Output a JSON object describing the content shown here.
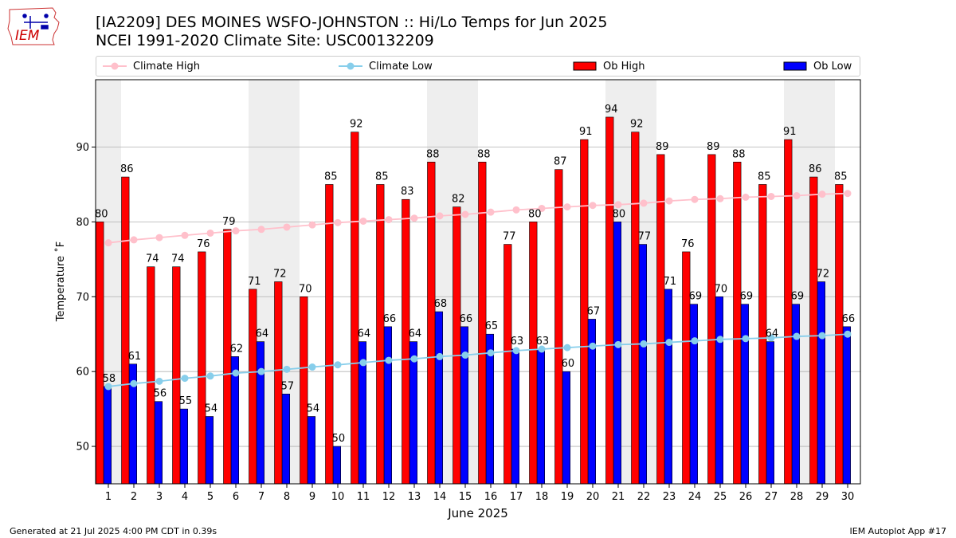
{
  "title_line1": "[IA2209] DES MOINES WSFO-JOHNSTON :: Hi/Lo Temps for Jun 2025",
  "title_line2": "NCEI 1991-2020 Climate Site: USC00132209",
  "logo_text": "IEM",
  "footer_left": "Generated at 21 Jul 2025 4:00 PM CDT in 0.39s",
  "footer_right": "IEM Autoplot App #17",
  "legend": {
    "climate_high": "Climate High",
    "climate_low": "Climate Low",
    "ob_high": "Ob High",
    "ob_low": "Ob Low"
  },
  "colors": {
    "ob_high": "#ff0000",
    "ob_low": "#0000ff",
    "climate_high": "#ffc0cb",
    "climate_low": "#87ceeb",
    "weekend_band": "#eeeeee",
    "grid": "#b0b0b0"
  },
  "chart_data": {
    "type": "bar",
    "xlabel": "June 2025",
    "ylabel": "Temperature ˚F",
    "ylim": [
      45,
      99
    ],
    "yticks": [
      50,
      60,
      70,
      80,
      90
    ],
    "grid": "horizontal",
    "legend_position": "top",
    "categories": [
      "1",
      "2",
      "3",
      "4",
      "5",
      "6",
      "7",
      "8",
      "9",
      "10",
      "11",
      "12",
      "13",
      "14",
      "15",
      "16",
      "17",
      "18",
      "19",
      "20",
      "21",
      "22",
      "23",
      "24",
      "25",
      "26",
      "27",
      "28",
      "29",
      "30"
    ],
    "weekend_days": [
      1,
      7,
      8,
      14,
      15,
      21,
      22,
      28,
      29
    ],
    "series": [
      {
        "name": "Ob High",
        "kind": "bar",
        "values": [
          80,
          86,
          74,
          74,
          76,
          79,
          71,
          72,
          70,
          85,
          92,
          85,
          83,
          88,
          82,
          88,
          77,
          80,
          87,
          91,
          94,
          92,
          89,
          76,
          89,
          88,
          85,
          91,
          86,
          85
        ]
      },
      {
        "name": "Ob Low",
        "kind": "bar",
        "values": [
          58,
          61,
          56,
          55,
          54,
          62,
          64,
          57,
          54,
          50,
          64,
          66,
          64,
          68,
          66,
          65,
          63,
          63,
          60,
          67,
          80,
          77,
          71,
          69,
          70,
          69,
          64,
          69,
          72,
          66
        ]
      },
      {
        "name": "Climate High",
        "kind": "line",
        "values": [
          77.2,
          77.6,
          77.9,
          78.2,
          78.5,
          78.8,
          79.0,
          79.3,
          79.6,
          79.9,
          80.1,
          80.3,
          80.5,
          80.8,
          81.0,
          81.3,
          81.6,
          81.8,
          82.0,
          82.2,
          82.3,
          82.5,
          82.8,
          83.0,
          83.1,
          83.3,
          83.4,
          83.5,
          83.7,
          83.8
        ]
      },
      {
        "name": "Climate Low",
        "kind": "line",
        "values": [
          58.0,
          58.4,
          58.7,
          59.1,
          59.4,
          59.8,
          60.0,
          60.3,
          60.6,
          60.9,
          61.2,
          61.5,
          61.7,
          62.0,
          62.2,
          62.5,
          62.8,
          63.0,
          63.2,
          63.4,
          63.6,
          63.7,
          63.9,
          64.1,
          64.3,
          64.4,
          64.5,
          64.7,
          64.8,
          65.0
        ]
      }
    ]
  }
}
